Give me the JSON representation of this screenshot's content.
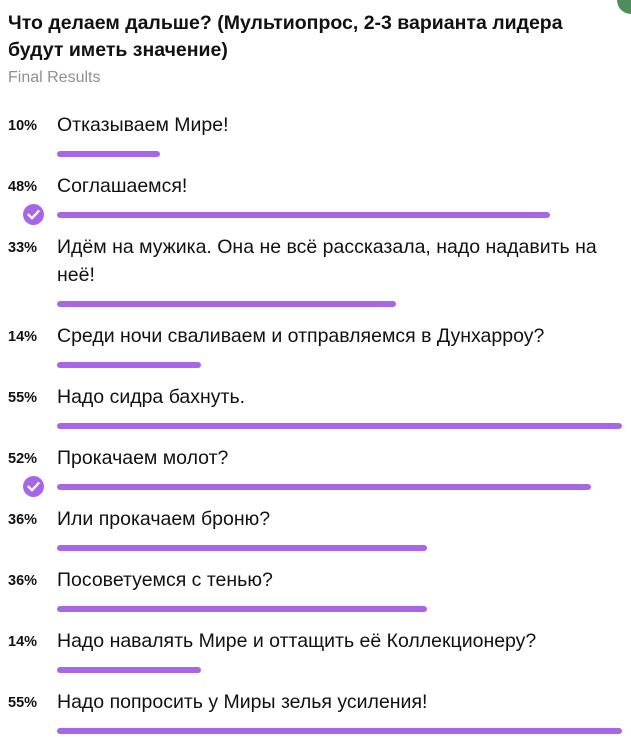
{
  "poll": {
    "question": "Что делаем дальше? (Мультиопрос, 2-3 варианта лидера будут иметь значение)",
    "status": "Final Results",
    "accent_color": "#a866e6",
    "options": [
      {
        "percent_label": "10%",
        "percent": 10,
        "text": "Отказываем Мире!",
        "chosen": false
      },
      {
        "percent_label": "48%",
        "percent": 48,
        "text": "Соглашаемся!",
        "chosen": true
      },
      {
        "percent_label": "33%",
        "percent": 33,
        "text": "Идём на мужика. Она не всё рассказала, надо надавить на неё!",
        "chosen": false
      },
      {
        "percent_label": "14%",
        "percent": 14,
        "text": "Среди ночи сваливаем и отправляемся в Дунхарроу?",
        "chosen": false
      },
      {
        "percent_label": "55%",
        "percent": 55,
        "text": "Надо сидра бахнуть.",
        "chosen": false
      },
      {
        "percent_label": "52%",
        "percent": 52,
        "text": "Прокачаем молот?",
        "chosen": true
      },
      {
        "percent_label": "36%",
        "percent": 36,
        "text": "Или прокачаем броню?",
        "chosen": false
      },
      {
        "percent_label": "36%",
        "percent": 36,
        "text": "Посоветуемся с тенью?",
        "chosen": false
      },
      {
        "percent_label": "14%",
        "percent": 14,
        "text": "Надо навалять Мире и оттащить её Коллекционеру?",
        "chosen": false
      },
      {
        "percent_label": "55%",
        "percent": 55,
        "text": "Надо попросить у Миры зелья усиления!",
        "chosen": false
      }
    ]
  }
}
